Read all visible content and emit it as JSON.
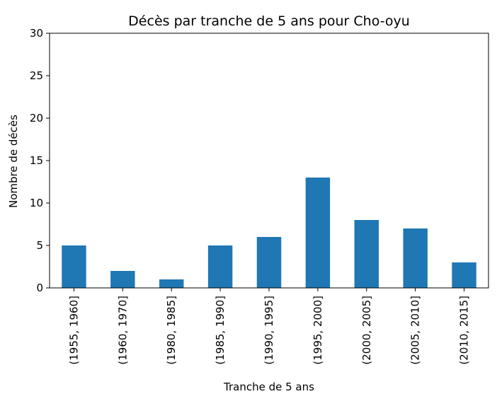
{
  "chart_data": {
    "type": "bar",
    "title": "Décès par tranche de 5 ans pour Cho-oyu",
    "xlabel": "Tranche de 5 ans",
    "ylabel": "Nombre de décès",
    "categories": [
      "(1955, 1960]",
      "(1960, 1970]",
      "(1980, 1985]",
      "(1985, 1990]",
      "(1990, 1995]",
      "(1995, 2000]",
      "(2000, 2005]",
      "(2005, 2010]",
      "(2010, 2015]"
    ],
    "values": [
      5,
      2,
      1,
      5,
      6,
      13,
      8,
      7,
      3
    ],
    "ylim": [
      0,
      30
    ],
    "yticks": [
      0,
      5,
      10,
      15,
      20,
      25,
      30
    ],
    "grid": false,
    "legend": "none",
    "bar_color": "#1f77b4"
  }
}
